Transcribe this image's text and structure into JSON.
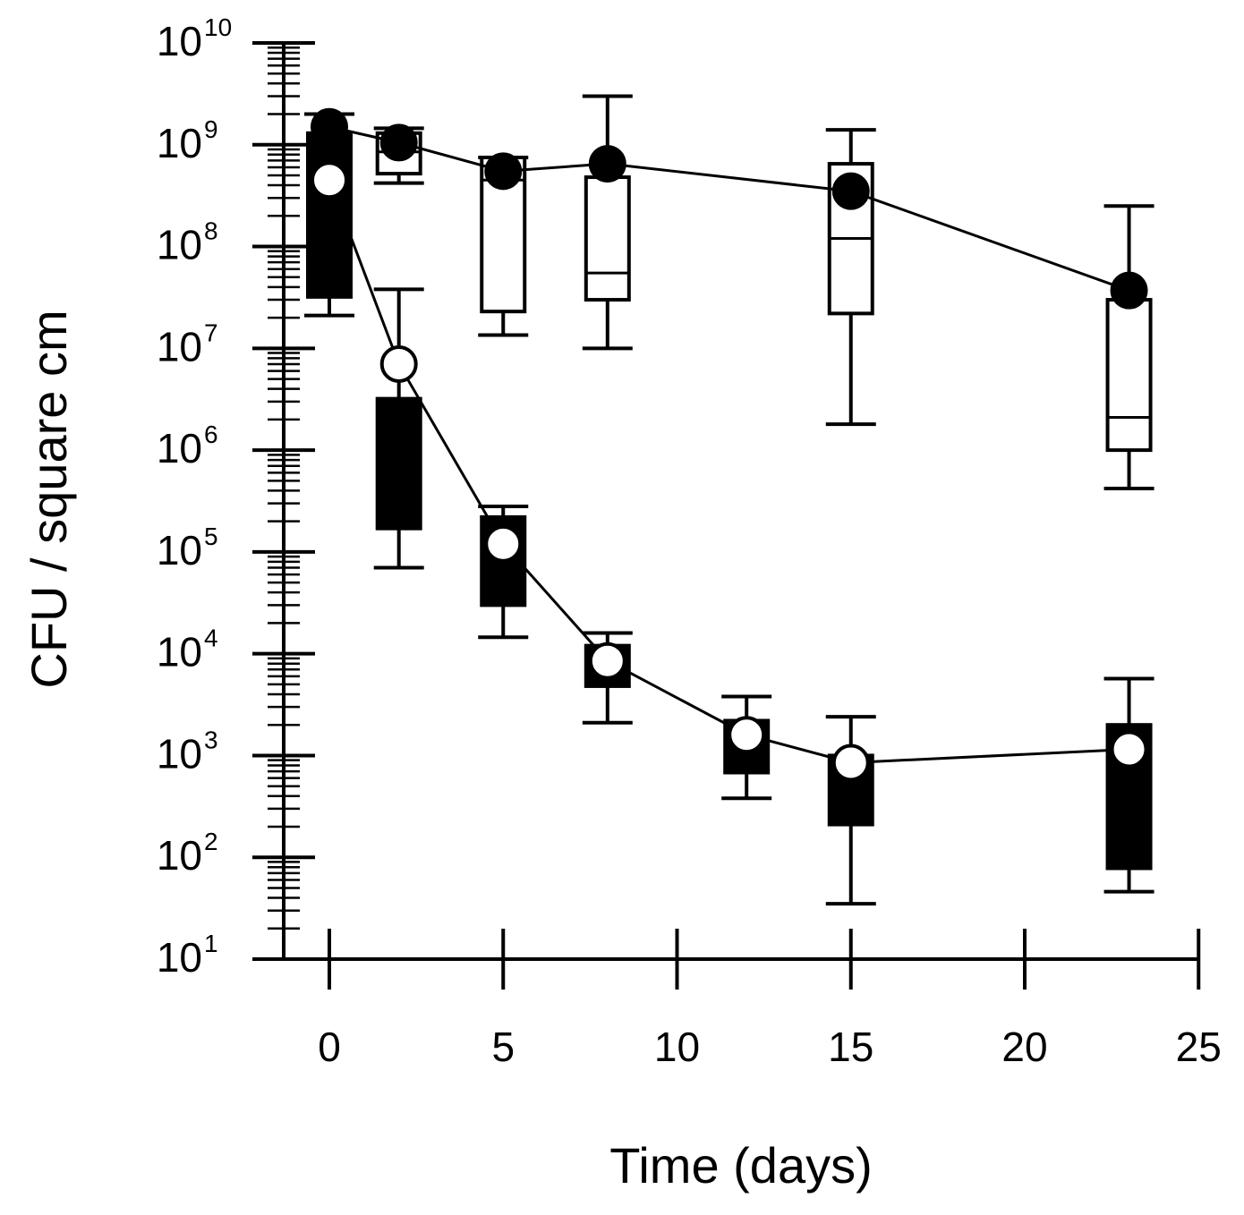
{
  "chart_data": {
    "type": "line",
    "title": "",
    "xlabel": "Time (days)",
    "ylabel": "CFU / square cm",
    "xlim": [
      -1.3,
      25
    ],
    "ylim_log10": [
      1,
      10
    ],
    "y_scale": "log",
    "xticks": [
      0,
      5,
      10,
      15,
      20,
      25
    ],
    "xtick_labels": [
      "0",
      "5",
      "10",
      "15",
      "20",
      "25"
    ],
    "yticks": [
      {
        "base": "10",
        "exp": "1"
      },
      {
        "base": "10",
        "exp": "2"
      },
      {
        "base": "10",
        "exp": "3"
      },
      {
        "base": "10",
        "exp": "4"
      },
      {
        "base": "10",
        "exp": "5"
      },
      {
        "base": "10",
        "exp": "6"
      },
      {
        "base": "10",
        "exp": "7"
      },
      {
        "base": "10",
        "exp": "8"
      },
      {
        "base": "10",
        "exp": "9"
      },
      {
        "base": "10",
        "exp": "10"
      }
    ],
    "grid": false,
    "legend": "none",
    "series": [
      {
        "name": "filled-circle-series",
        "marker": "filled-circle",
        "box_fill": "#ffffff",
        "points": [
          {
            "x": 0,
            "y": 1500000000.0
          },
          {
            "x": 2,
            "y": 1050000000.0
          },
          {
            "x": 5,
            "y": 550000000.0
          },
          {
            "x": 8,
            "y": 650000000.0
          },
          {
            "x": 15,
            "y": 350000000.0
          },
          {
            "x": 23,
            "y": 37000000.0
          }
        ],
        "boxes": [
          {
            "x": 2,
            "whisker_low": 420000000.0,
            "q1": 520000000.0,
            "median": 850000000.0,
            "q3": 1300000000.0,
            "whisker_high": 1450000000.0
          },
          {
            "x": 5,
            "whisker_low": 13500000.0,
            "q1": 23000000.0,
            "median": 450000000.0,
            "q3": 750000000.0,
            "whisker_high": 750000000.0
          },
          {
            "x": 8,
            "whisker_low": 10000000.0,
            "q1": 30000000.0,
            "median": 55000000.0,
            "q3": 480000000.0,
            "whisker_high": 3000000000.0
          },
          {
            "x": 15,
            "whisker_low": 1800000.0,
            "q1": 22000000.0,
            "median": 120000000.0,
            "q3": 650000000.0,
            "whisker_high": 1400000000.0
          },
          {
            "x": 23,
            "whisker_low": 420000.0,
            "q1": 1000000.0,
            "median": 2100000.0,
            "q3": 30000000.0,
            "whisker_high": 250000000.0
          }
        ]
      },
      {
        "name": "open-circle-series",
        "marker": "open-circle",
        "box_fill": "#000000",
        "points": [
          {
            "x": 0,
            "y": 450000000.0
          },
          {
            "x": 2,
            "y": 7000000.0
          },
          {
            "x": 5,
            "y": 120000.0
          },
          {
            "x": 8,
            "y": 8500.0
          },
          {
            "x": 12,
            "y": 1600.0
          },
          {
            "x": 15,
            "y": 850.0
          },
          {
            "x": 23,
            "y": 1150.0
          }
        ],
        "boxes": [
          {
            "x": 0,
            "whisker_low": 21000000.0,
            "q1": 32000000.0,
            "median": 300000000.0,
            "q3": 1300000000.0,
            "whisker_high": 2000000000.0
          },
          {
            "x": 2,
            "whisker_low": 70000.0,
            "q1": 170000.0,
            "median": 700000.0,
            "q3": 3200000.0,
            "whisker_high": 38000000.0
          },
          {
            "x": 5,
            "whisker_low": 14500.0,
            "q1": 30000.0,
            "median": 80000.0,
            "q3": 220000.0,
            "whisker_high": 280000.0
          },
          {
            "x": 8,
            "whisker_low": 2100.0,
            "q1": 4800.0,
            "median": 8000.0,
            "q3": 12000.0,
            "whisker_high": 16000.0
          },
          {
            "x": 12,
            "whisker_low": 380.0,
            "q1": 680.0,
            "median": 1200.0,
            "q3": 2200.0,
            "whisker_high": 3800.0
          },
          {
            "x": 15,
            "whisker_low": 35,
            "q1": 210.0,
            "median": 500.0,
            "q3": 1000.0,
            "whisker_high": 2400.0
          },
          {
            "x": 23,
            "whisker_low": 46,
            "q1": 78,
            "median": 300.0,
            "q3": 2000.0,
            "whisker_high": 5700.0
          }
        ]
      }
    ]
  }
}
